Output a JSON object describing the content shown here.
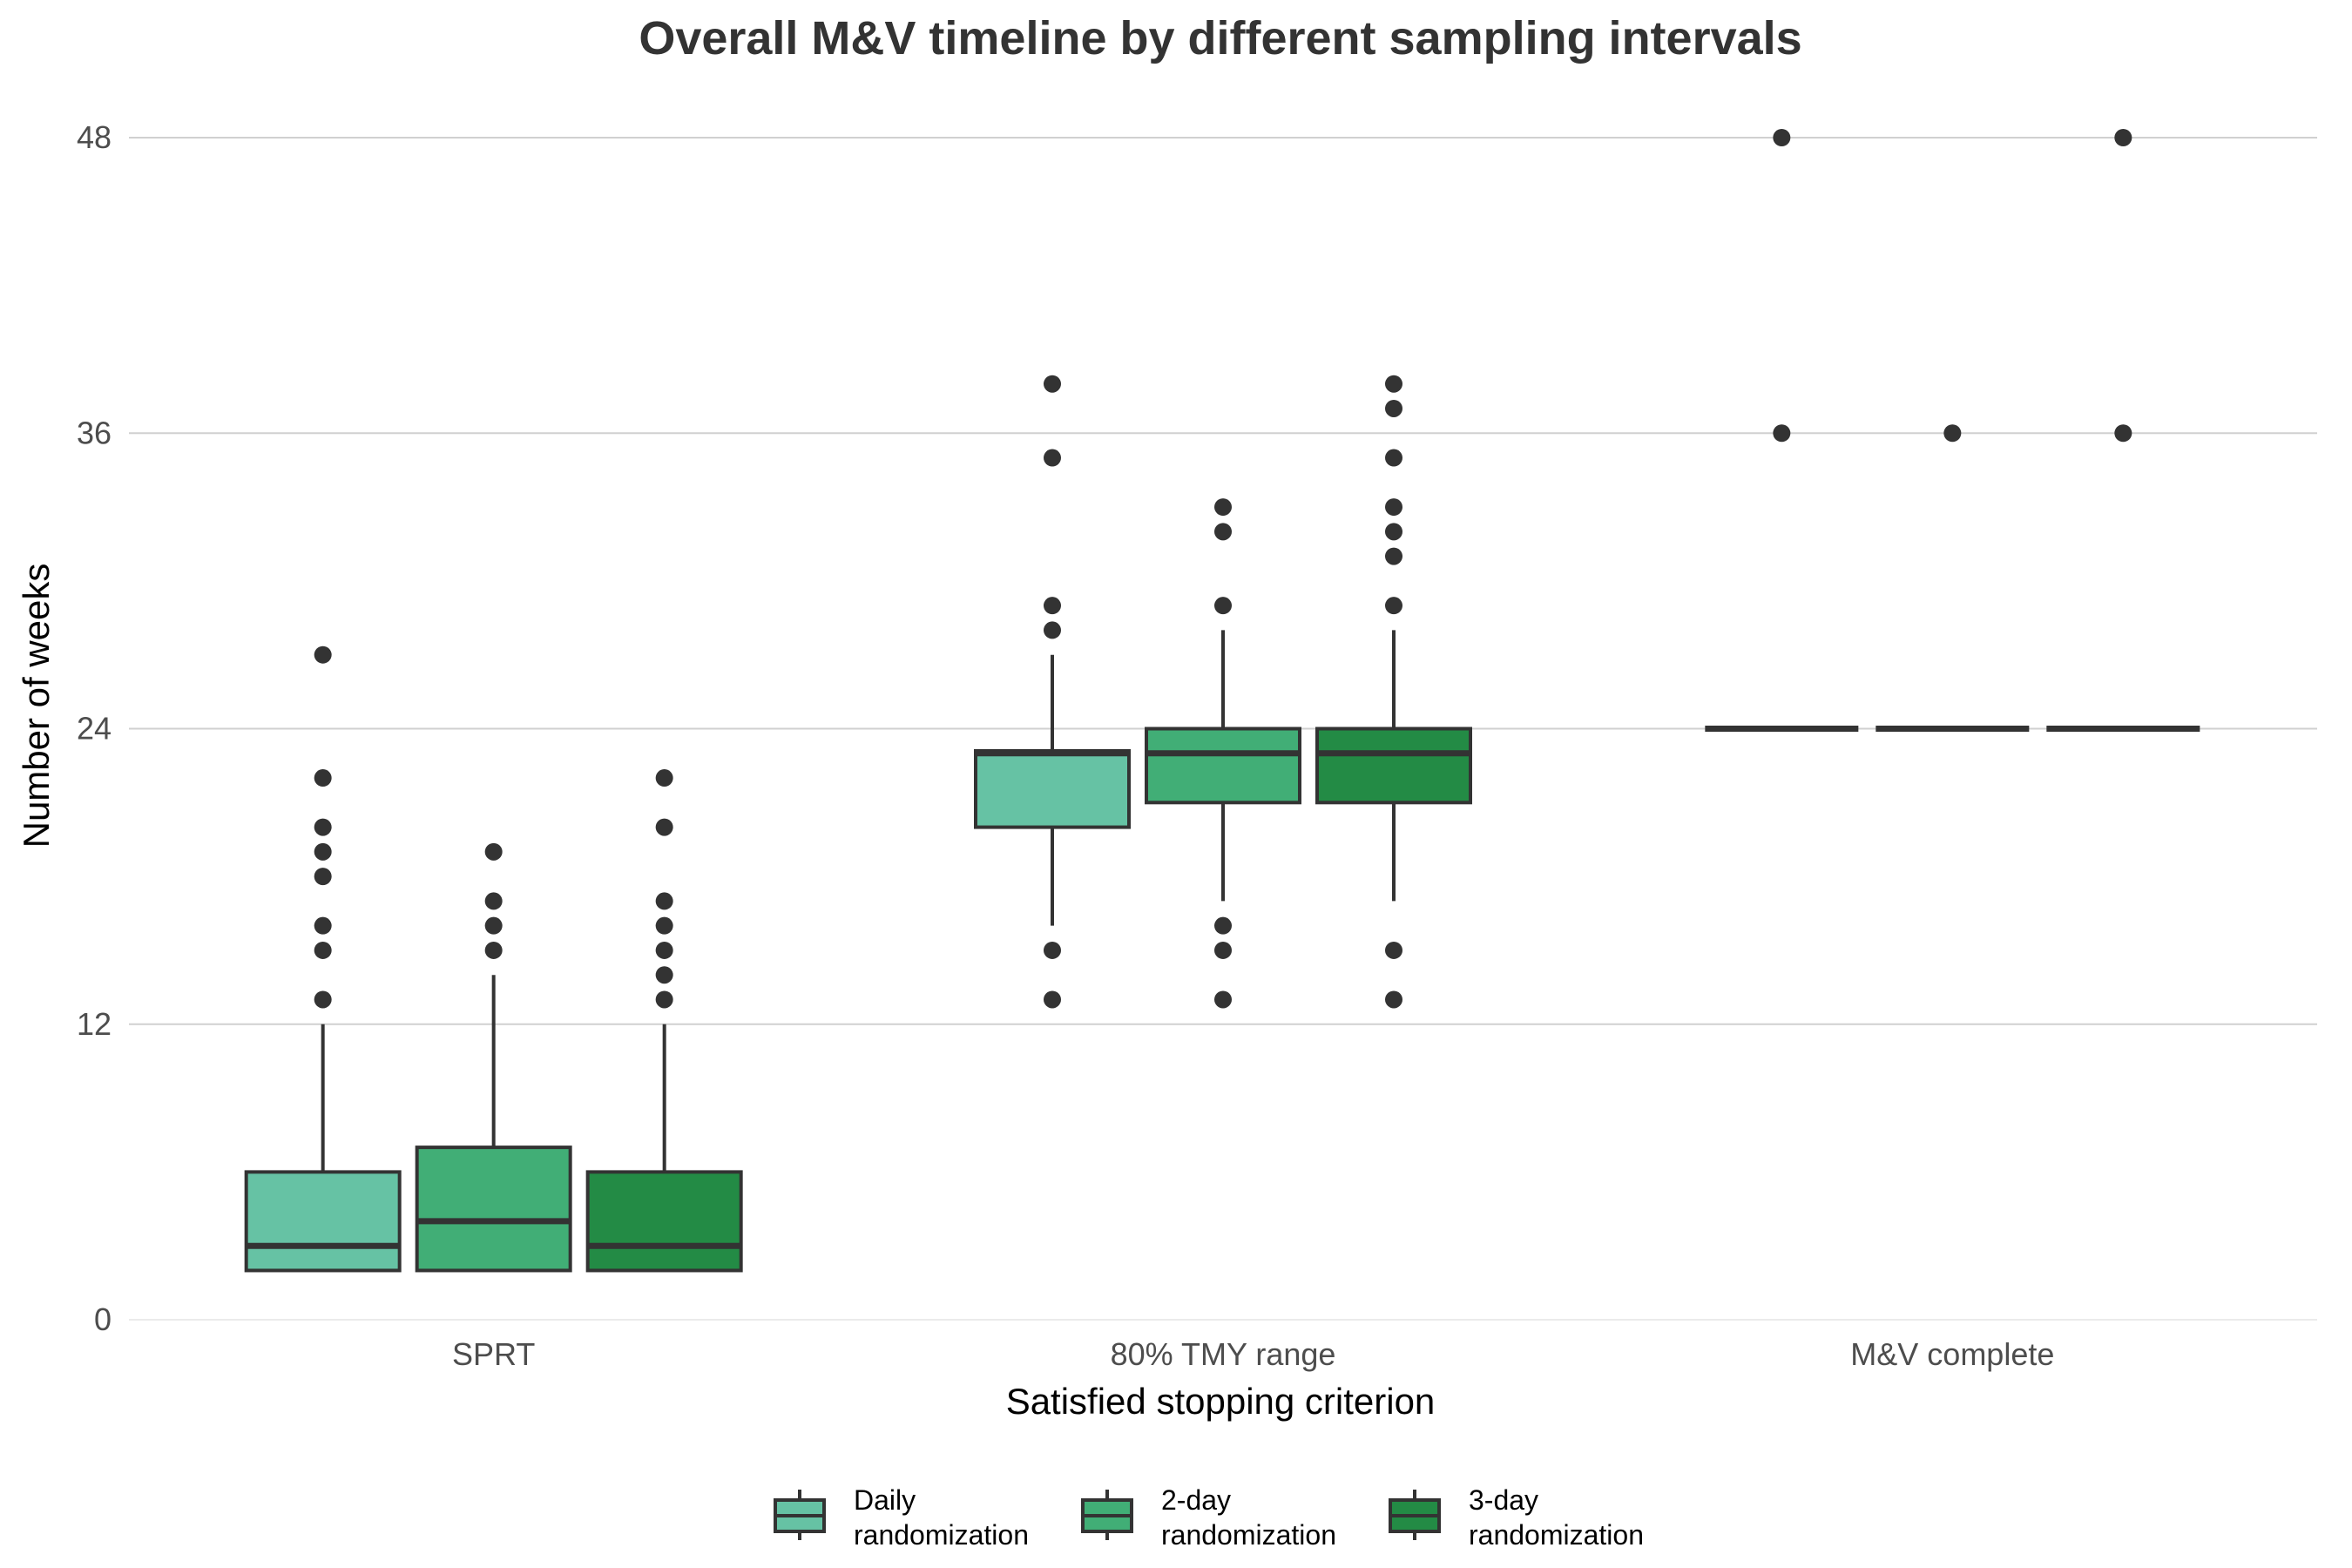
{
  "chart_data": {
    "type": "boxplot",
    "title": "Overall M&V timeline by different sampling intervals",
    "xlabel": "Satisfied stopping criterion",
    "ylabel": "Number of weeks",
    "ylim": [
      0,
      50
    ],
    "yticks": [
      0,
      12,
      24,
      36,
      48
    ],
    "grid": "horizontal major",
    "legend_position": "bottom",
    "categories": [
      "SPRT",
      "80% TMY range",
      "M&V complete"
    ],
    "series": [
      {
        "name": "Daily\nrandomization",
        "color": "#66c2a4",
        "boxes": [
          {
            "min": 2,
            "q1": 2,
            "median": 3,
            "q3": 6,
            "max": 12,
            "outliers": [
              13,
              15,
              16,
              18,
              19,
              20,
              22,
              27
            ]
          },
          {
            "min": 16,
            "q1": 20,
            "median": 23,
            "q3": 23.1,
            "max": 27,
            "outliers": [
              13,
              15,
              28,
              29,
              35,
              38
            ]
          },
          {
            "min": 24,
            "q1": 24,
            "median": 24,
            "q3": 24,
            "max": 24,
            "outliers": [
              36,
              48
            ]
          }
        ]
      },
      {
        "name": "2-day\nrandomization",
        "color": "#41ae76",
        "boxes": [
          {
            "min": 2,
            "q1": 2,
            "median": 4,
            "q3": 7,
            "max": 14,
            "outliers": [
              15,
              16,
              17,
              19
            ]
          },
          {
            "min": 17,
            "q1": 21,
            "median": 23,
            "q3": 24,
            "max": 28,
            "outliers": [
              13,
              15,
              16,
              29,
              32,
              33
            ]
          },
          {
            "min": 24,
            "q1": 24,
            "median": 24,
            "q3": 24,
            "max": 24,
            "outliers": [
              36
            ]
          }
        ]
      },
      {
        "name": "3-day\nrandomization",
        "color": "#238b45",
        "boxes": [
          {
            "min": 2,
            "q1": 2,
            "median": 3,
            "q3": 6,
            "max": 12,
            "outliers": [
              13,
              14,
              15,
              16,
              17,
              20,
              22
            ]
          },
          {
            "min": 17,
            "q1": 21,
            "median": 23,
            "q3": 24,
            "max": 28,
            "outliers": [
              13,
              15,
              29,
              31,
              32,
              33,
              35,
              37,
              38
            ]
          },
          {
            "min": 24,
            "q1": 24,
            "median": 24,
            "q3": 24,
            "max": 24,
            "outliers": [
              36,
              48
            ]
          }
        ]
      }
    ]
  }
}
